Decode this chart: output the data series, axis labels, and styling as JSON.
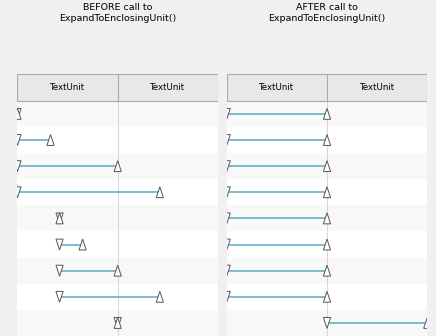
{
  "title_before": "BEFORE call to\nExpandToEnclosingUnit()",
  "title_after": "AFTER call to\nExpandToEnclosingUnit()",
  "col_header": "TextUnit",
  "line_color": "#5ba8c5",
  "circle_color": "#f4a840",
  "circle_text_color": "#2a1000",
  "header_bg": "#e0e0e0",
  "panel_bg": "#ffffff",
  "outer_bg": "#f0f0f0",
  "divider_color": "#c0c0c0",
  "border_color": "#b0b0b0",
  "before_rows": [
    [
      0,
      0.0,
      0,
      0.0
    ],
    [
      0,
      0.0,
      0,
      0.33
    ],
    [
      0,
      0.0,
      1,
      0.0
    ],
    [
      0,
      0.0,
      1,
      0.42
    ],
    [
      0,
      0.42,
      0,
      0.42
    ],
    [
      0,
      0.42,
      0,
      0.65
    ],
    [
      0,
      0.42,
      1,
      0.0
    ],
    [
      0,
      0.42,
      1,
      0.42
    ],
    [
      1,
      0.0,
      1,
      0.0
    ]
  ],
  "after_rows": [
    [
      0,
      0.0,
      1,
      0.0
    ],
    [
      0,
      0.0,
      1,
      0.0
    ],
    [
      0,
      0.0,
      1,
      0.0
    ],
    [
      0,
      0.0,
      1,
      0.0
    ],
    [
      0,
      0.0,
      1,
      0.0
    ],
    [
      0,
      0.0,
      1,
      0.0
    ],
    [
      0,
      0.0,
      1,
      0.0
    ],
    [
      0,
      0.0,
      1,
      0.0
    ],
    [
      1,
      0.0,
      2,
      0.0
    ]
  ],
  "fig_width": 4.36,
  "fig_height": 3.36,
  "dpi": 100
}
